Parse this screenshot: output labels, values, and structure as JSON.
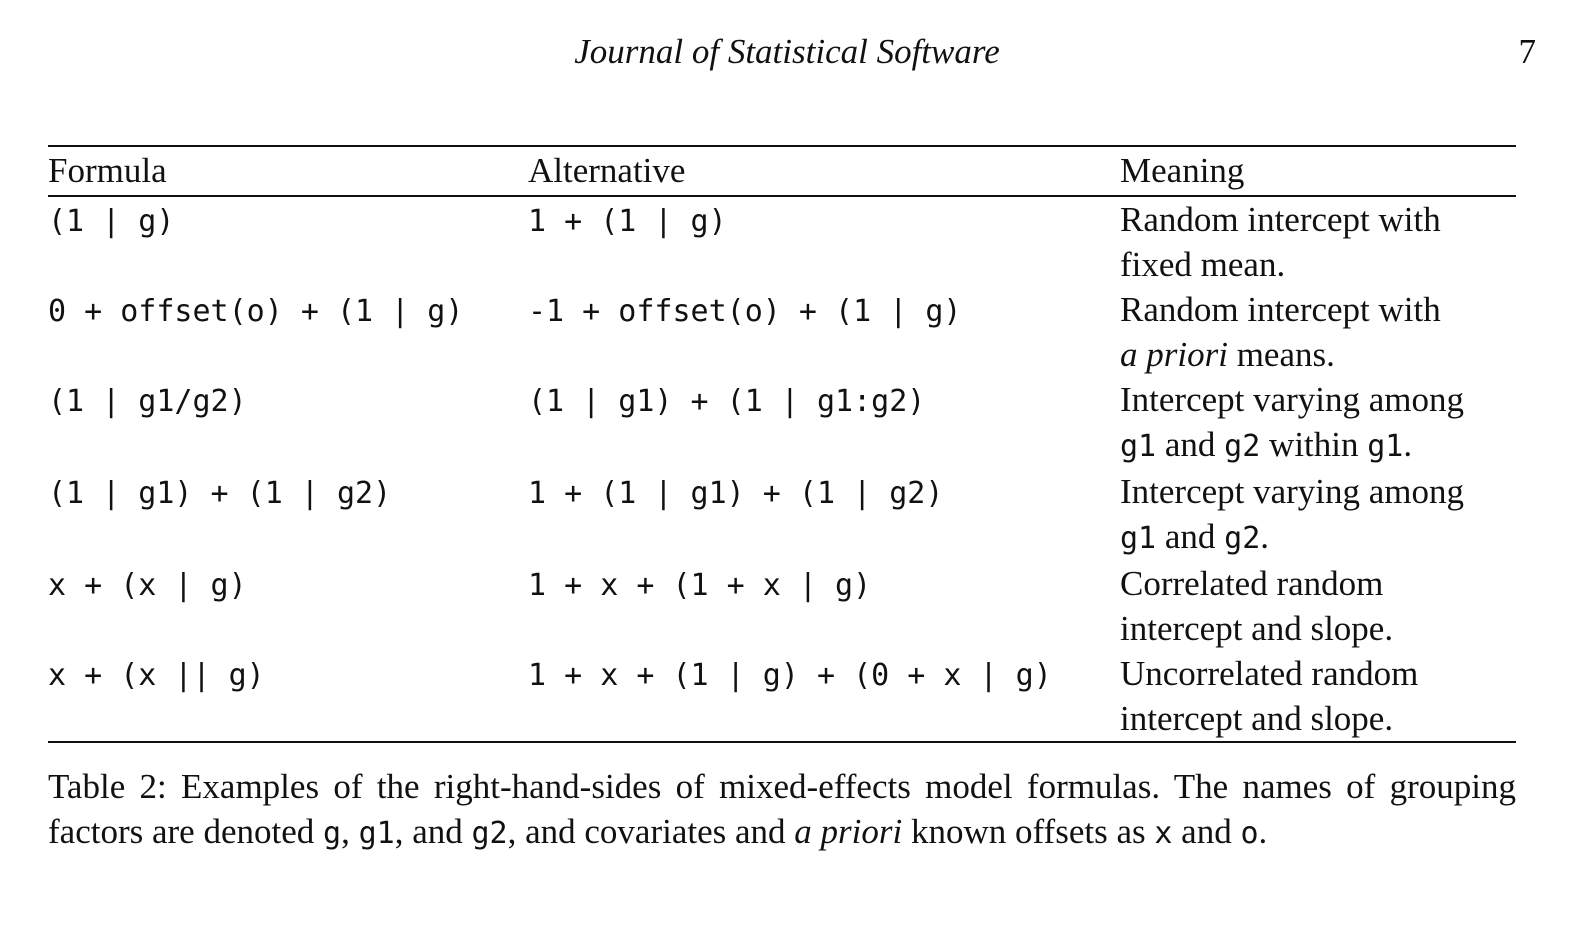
{
  "header": {
    "journal_title": "Journal of Statistical Software",
    "page_number": "7"
  },
  "table": {
    "columns": [
      "Formula",
      "Alternative",
      "Meaning"
    ],
    "rows": [
      {
        "formula": "(1 | g)",
        "alternative": "1 + (1 | g)",
        "meaning_line1": "Random intercept with",
        "meaning_line2": "fixed mean."
      },
      {
        "formula": "0 + offset(o) + (1 | g)",
        "alternative": "-1 + offset(o) + (1 | g)",
        "meaning_line1": "Random intercept with",
        "meaning_line2_italic": "a priori",
        "meaning_line2_rest": " means."
      },
      {
        "formula": "(1 | g1/g2)",
        "alternative": "(1 | g1) + (1 | g1:g2)",
        "meaning_line1": "Intercept varying among",
        "meaning_line2_code1": "g1",
        "meaning_line2_text1": " and ",
        "meaning_line2_code2": "g2",
        "meaning_line2_text2": " within ",
        "meaning_line2_code3": "g1",
        "meaning_line2_text3": "."
      },
      {
        "formula": "(1 | g1) + (1 | g2)",
        "alternative": "1 + (1 | g1) + (1 | g2)",
        "meaning_line1": "Intercept varying among",
        "meaning_line2_code1": "g1",
        "meaning_line2_text1": " and ",
        "meaning_line2_code2": "g2",
        "meaning_line2_text2": "."
      },
      {
        "formula": "x + (x | g)",
        "alternative": "1 + x + (1 + x | g)",
        "meaning_line1": "Correlated random",
        "meaning_line2": "intercept and slope."
      },
      {
        "formula": "x + (x || g)",
        "alternative": "1 + x + (1 | g) + (0 + x | g)",
        "meaning_line1": "Uncorrelated random",
        "meaning_line2": "intercept and slope."
      }
    ]
  },
  "caption": {
    "part1": "Table 2:  Examples of the right-hand-sides of mixed-effects model formulas.  The names of grouping factors are denoted ",
    "code_g": "g",
    "sep1": ", ",
    "code_g1": "g1",
    "sep2": ", and ",
    "code_g2": "g2",
    "part2": ", and covariates and ",
    "italic": "a priori",
    "part3": " known offsets as ",
    "code_x": "x",
    "part4": " and ",
    "code_o": "o",
    "part5": "."
  }
}
